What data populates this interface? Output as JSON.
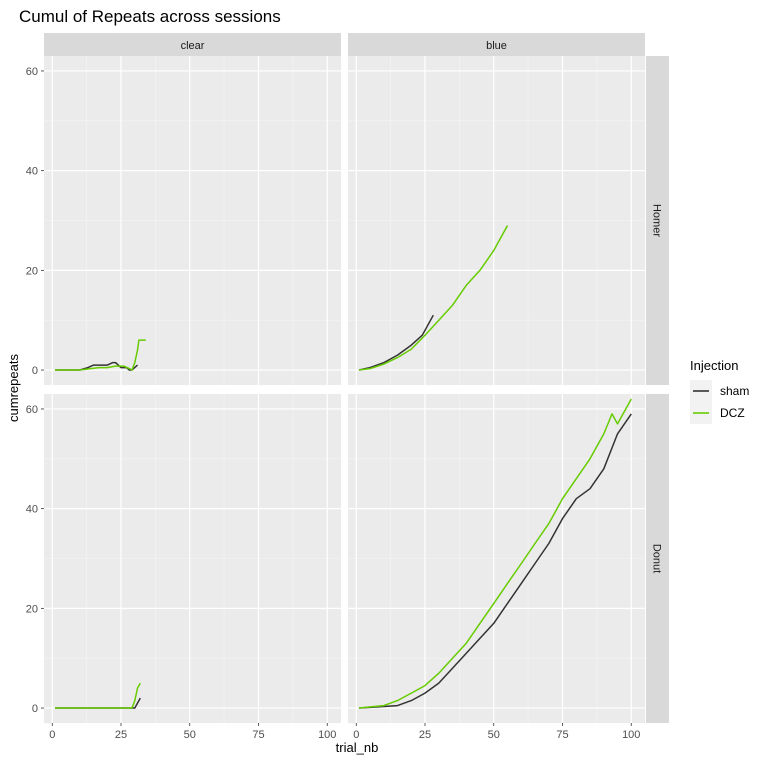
{
  "chart_data": {
    "type": "line",
    "title": "Cumul of Repeats across sessions",
    "xlabel": "trial_nb",
    "ylabel": "cumrepeats",
    "xlim": [
      -3,
      105
    ],
    "ylim": [
      -3,
      63
    ],
    "x_ticks": [
      0,
      25,
      50,
      75,
      100
    ],
    "y_ticks": [
      0,
      20,
      40,
      60
    ],
    "grid": true,
    "columns": [
      "clear",
      "blue"
    ],
    "rows": [
      "Homer",
      "Donut"
    ],
    "legend": {
      "title": "Injection",
      "position": "right",
      "entries": [
        {
          "name": "sham",
          "color": "#333333"
        },
        {
          "name": "DCZ",
          "color": "#66cc00"
        }
      ]
    },
    "panels": [
      {
        "column": "clear",
        "row": "Homer",
        "series": [
          {
            "name": "sham",
            "x": [
              1,
              10,
              13,
              15,
              20,
              22,
              23,
              25,
              27,
              28,
              29,
              31
            ],
            "y": [
              0,
              0,
              0.5,
              1,
              1,
              1.5,
              1.5,
              0.5,
              0.5,
              0,
              0,
              1
            ]
          },
          {
            "name": "DCZ",
            "x": [
              1,
              10,
              14,
              17,
              20,
              23,
              26,
              28,
              29,
              30,
              31,
              31.5,
              34
            ],
            "y": [
              0,
              0,
              0.3,
              0.5,
              0.5,
              0.8,
              0.8,
              0.3,
              0,
              1.5,
              4,
              6,
              6
            ]
          }
        ]
      },
      {
        "column": "blue",
        "row": "Homer",
        "series": [
          {
            "name": "sham",
            "x": [
              1,
              5,
              10,
              15,
              20,
              24,
              28
            ],
            "y": [
              0,
              0.5,
              1.5,
              3,
              5,
              7,
              11
            ]
          },
          {
            "name": "DCZ",
            "x": [
              1,
              5,
              10,
              15,
              20,
              25,
              30,
              35,
              40,
              45,
              50,
              55
            ],
            "y": [
              0,
              0.3,
              1.2,
              2.5,
              4.2,
              7,
              10,
              13,
              17,
              20,
              24,
              29
            ]
          }
        ]
      },
      {
        "column": "clear",
        "row": "Donut",
        "series": [
          {
            "name": "sham",
            "x": [
              1,
              10,
              20,
              30,
              31,
              32
            ],
            "y": [
              0,
              0,
              0,
              0,
              1,
              2
            ]
          },
          {
            "name": "DCZ",
            "x": [
              1,
              10,
              20,
              29,
              30,
              31,
              32
            ],
            "y": [
              0,
              0,
              0,
              0,
              1.5,
              4,
              5
            ]
          }
        ]
      },
      {
        "column": "blue",
        "row": "Donut",
        "series": [
          {
            "name": "sham",
            "x": [
              1,
              10,
              15,
              20,
              25,
              30,
              35,
              40,
              45,
              50,
              55,
              60,
              65,
              70,
              75,
              80,
              85,
              90,
              95,
              100
            ],
            "y": [
              0,
              0.3,
              0.5,
              1.5,
              3,
              5,
              8,
              11,
              14,
              17,
              21,
              25,
              29,
              33,
              38,
              42,
              44,
              48,
              55,
              59
            ]
          },
          {
            "name": "DCZ",
            "x": [
              1,
              10,
              15,
              20,
              25,
              30,
              35,
              40,
              45,
              50,
              55,
              60,
              65,
              70,
              75,
              80,
              85,
              90,
              93,
              95,
              100
            ],
            "y": [
              0,
              0.5,
              1.5,
              3,
              4.5,
              7,
              10,
              13,
              17,
              21,
              25,
              29,
              33,
              37,
              42,
              46,
              50,
              55,
              59,
              57,
              62
            ]
          }
        ]
      }
    ]
  }
}
